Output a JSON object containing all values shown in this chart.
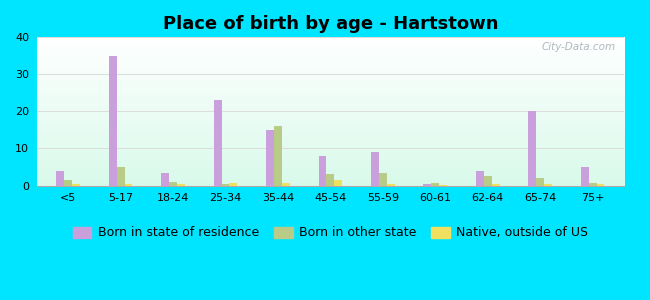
{
  "title": "Place of birth by age - Hartstown",
  "categories": [
    "<5",
    "5-17",
    "18-24",
    "25-34",
    "35-44",
    "45-54",
    "55-59",
    "60-61",
    "62-64",
    "65-74",
    "75+"
  ],
  "born_in_state": [
    4,
    35,
    3.5,
    23,
    15,
    8,
    9,
    0.5,
    4,
    20,
    5
  ],
  "born_other_state": [
    1.5,
    5,
    1,
    0.5,
    16,
    3,
    3.5,
    0.8,
    2.5,
    2,
    0.8
  ],
  "native_outside_us": [
    0.5,
    0.5,
    0.5,
    0.8,
    0.8,
    1.5,
    0.5,
    0.2,
    0.5,
    0.5,
    0.5
  ],
  "color_born_state": "#c9a0dc",
  "color_other_state": "#b8cc88",
  "color_native": "#f0e060",
  "ylim": [
    0,
    40
  ],
  "yticks": [
    0,
    10,
    20,
    30,
    40
  ],
  "background_outer": "#00e5ff",
  "grid_color": "#dddddd",
  "bar_width": 0.15,
  "title_fontsize": 13,
  "tick_fontsize": 8,
  "legend_fontsize": 9
}
